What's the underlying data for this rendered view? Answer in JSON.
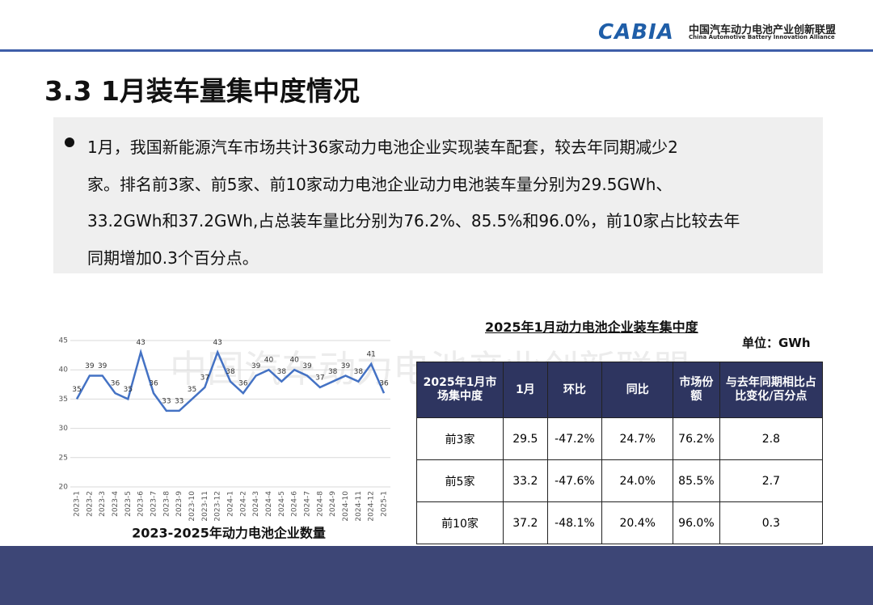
{
  "header": {
    "logo": "CABIA",
    "org_cn": "中国汽车动力电池产业创新联盟",
    "org_en": "China Automotive Battery Innovation Alliance"
  },
  "title": "3.3 1月装车量集中度情况",
  "bullet_lines": [
    "1月，我国新能源汽车市场共计36家动力电池企业实现装车配套，较去年同期减少2",
    "家。排名前3家、前5家、前10家动力电池企业动力电池装车量分别为29.5GWh、",
    "33.2GWh和37.2GWh,占总装车量比分别为76.2%、85.5%和96.0%，前10家占比较去年",
    "同期增加0.3个百分点。"
  ],
  "watermark": "中国汽车动力电池产业创新联盟",
  "chart_data": {
    "type": "line",
    "title": "2023-2025年动力电池企业数量",
    "color": "#4472c4",
    "categories": [
      "2023-1",
      "2023-2",
      "2023-3",
      "2023-4",
      "2023-5",
      "2023-6",
      "2023-7",
      "2023-8",
      "2023-9",
      "2023-10",
      "2023-11",
      "2023-12",
      "2024-1",
      "2024-2",
      "2024-3",
      "2024-4",
      "2024-5",
      "2024-6",
      "2024-7",
      "2024-8",
      "2024-9",
      "2024-10",
      "2024-11",
      "2024-12",
      "2025-1"
    ],
    "values": [
      35,
      39,
      39,
      36,
      35,
      43,
      36,
      33,
      33,
      35,
      37,
      43,
      38,
      36,
      39,
      40,
      38,
      40,
      39,
      37,
      38,
      39,
      38,
      41,
      36
    ],
    "ylim": [
      20,
      45
    ],
    "yticks": [
      20,
      25,
      30,
      35,
      40,
      45
    ],
    "grid": true
  },
  "table": {
    "title": "2025年1月动力电池企业装车集中度",
    "unit": "单位：GWh",
    "header": [
      "2025年1月市场集中度",
      "1月",
      "环比",
      "同比",
      "市场份额",
      "与去年同期相比占比变化/百分点"
    ],
    "rows": [
      [
        "前3家",
        "29.5",
        "-47.2%",
        "24.7%",
        "76.2%",
        "2.8"
      ],
      [
        "前5家",
        "33.2",
        "-47.6%",
        "24.0%",
        "85.5%",
        "2.7"
      ],
      [
        "前10家",
        "37.2",
        "-48.1%",
        "20.4%",
        "96.0%",
        "0.3"
      ]
    ]
  }
}
